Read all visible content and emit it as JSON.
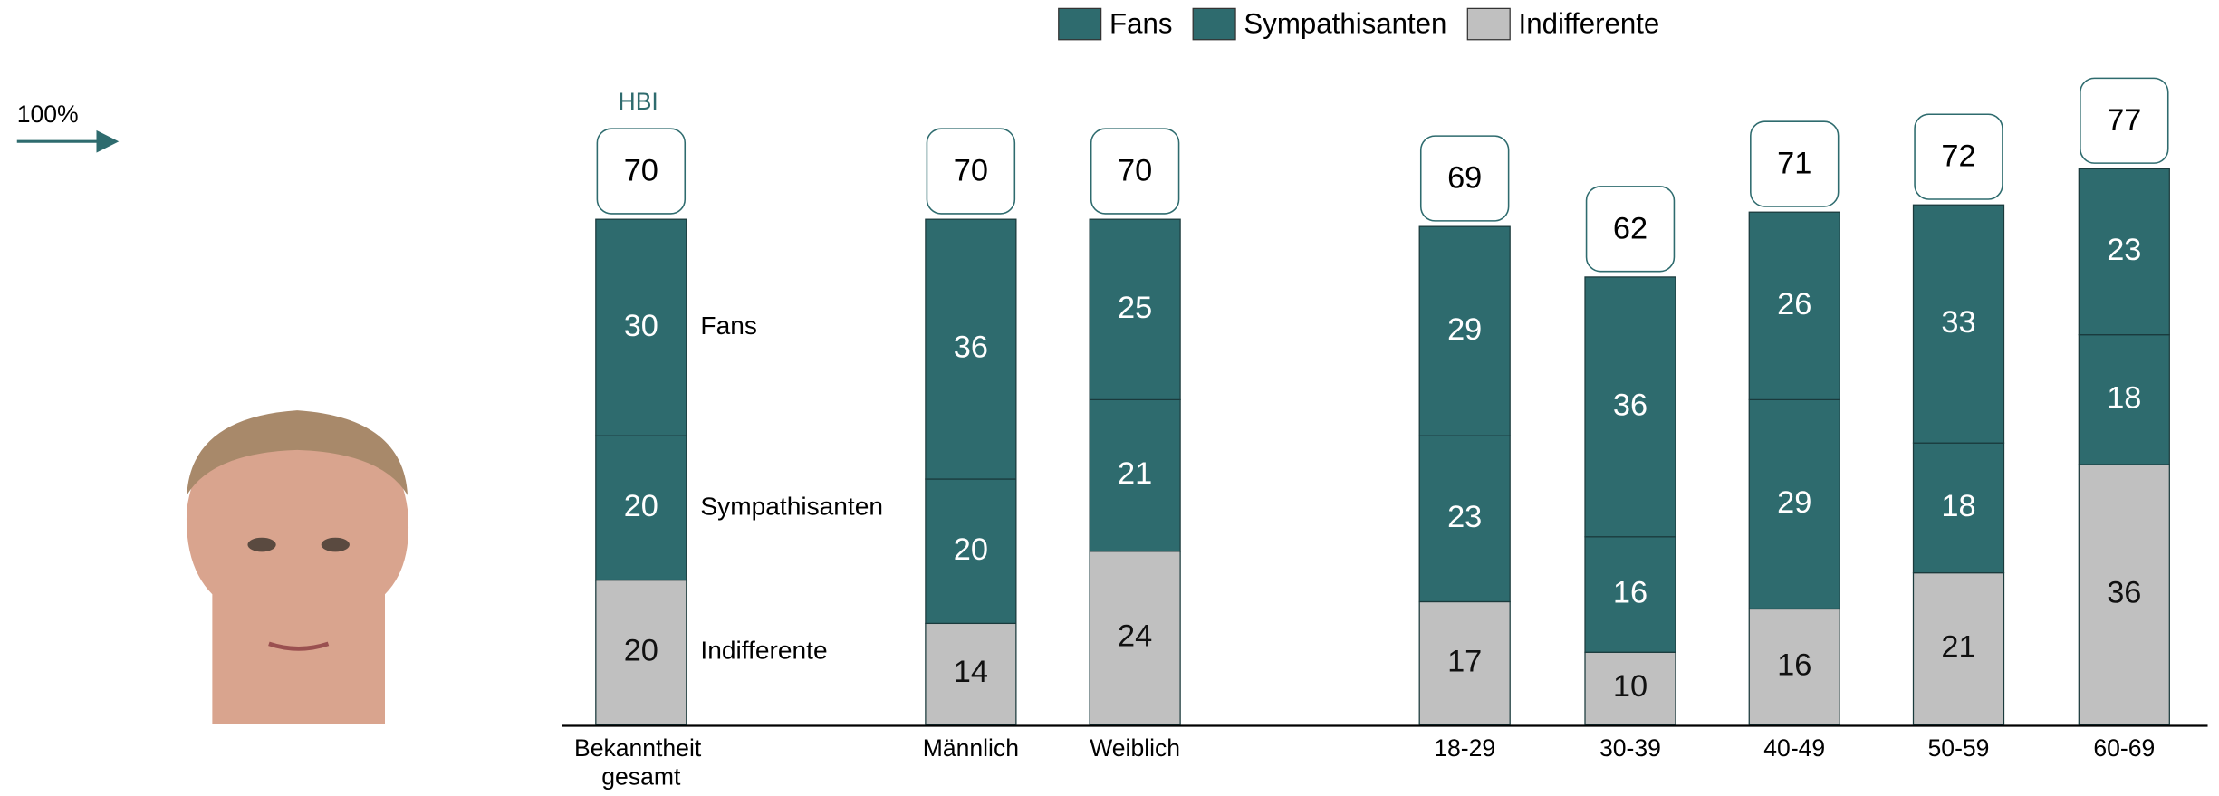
{
  "chart_data": {
    "type": "stacked_bar",
    "annotation": "100%",
    "hbi_label": "HBI",
    "categories": [
      "Bekanntheit gesamt",
      "Männlich",
      "Weiblich",
      "18-29",
      "30-39",
      "40-49",
      "50-59",
      "60-69"
    ],
    "series": [
      {
        "name": "Fans",
        "color": "#2e6b6e",
        "values": [
          30,
          36,
          25,
          29,
          36,
          26,
          33,
          23
        ]
      },
      {
        "name": "Sympathisanten",
        "color": "#2e6b6e",
        "values": [
          20,
          20,
          21,
          23,
          16,
          29,
          18,
          18
        ]
      },
      {
        "name": "Indifferente",
        "color": "#c0c0c0",
        "values": [
          20,
          14,
          24,
          17,
          10,
          16,
          21,
          36
        ]
      }
    ],
    "hbi_values": [
      70,
      70,
      70,
      69,
      62,
      71,
      72,
      77
    ],
    "ylim": [
      0,
      80
    ],
    "legend": "top"
  }
}
